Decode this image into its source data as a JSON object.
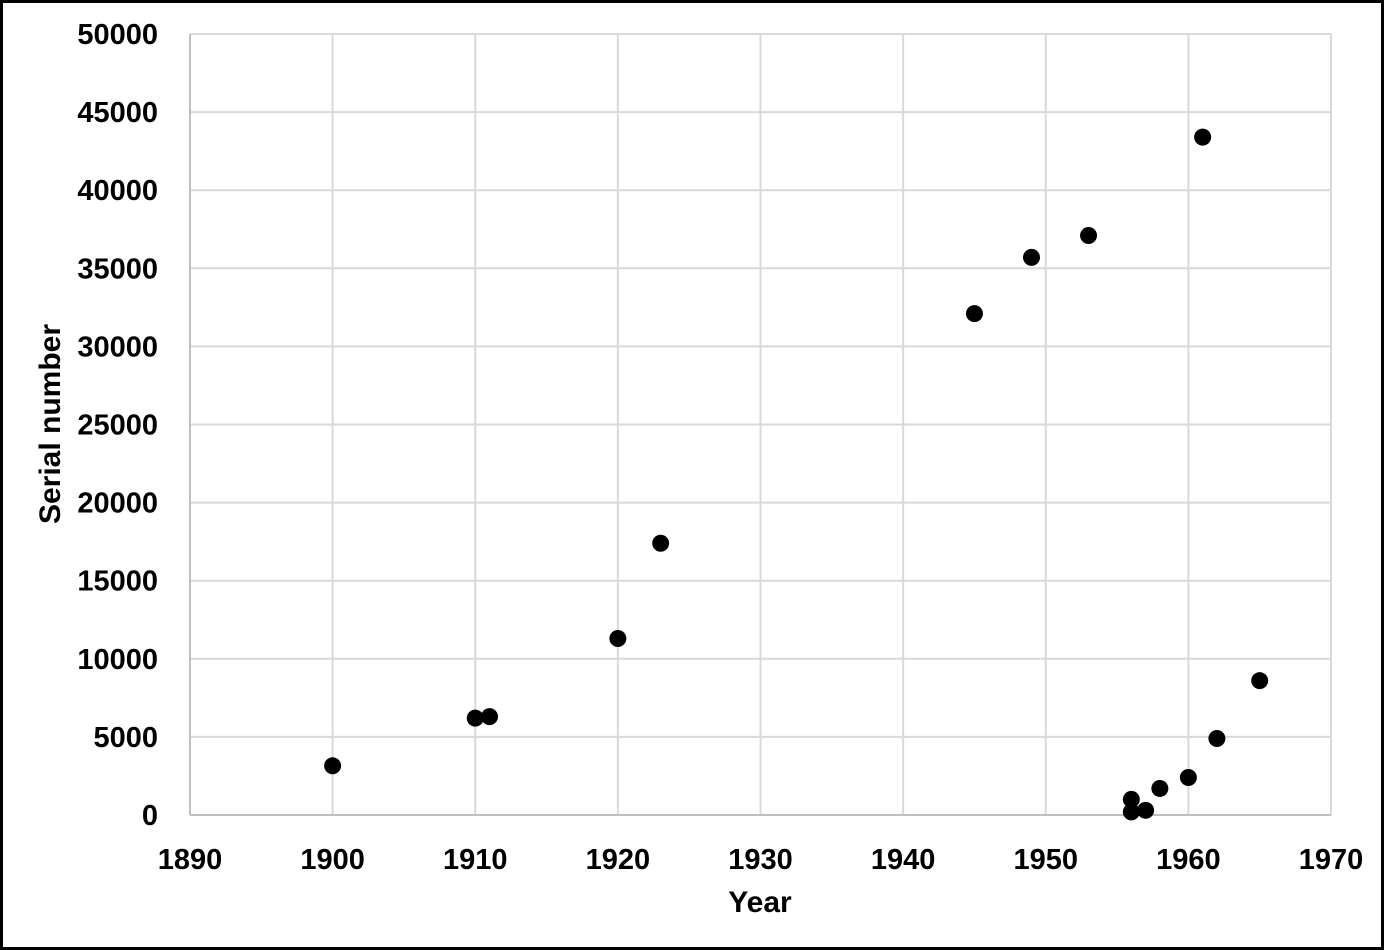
{
  "chart_data": {
    "type": "scatter",
    "title": "",
    "xlabel": "Year",
    "ylabel": "Serial number",
    "xlim": [
      1890,
      1970
    ],
    "ylim": [
      0,
      50000
    ],
    "x_ticks": [
      1890,
      1900,
      1910,
      1920,
      1930,
      1940,
      1950,
      1960,
      1970
    ],
    "y_ticks": [
      0,
      5000,
      10000,
      15000,
      20000,
      25000,
      30000,
      35000,
      40000,
      45000,
      50000
    ],
    "grid": true,
    "legend": "none",
    "marker": {
      "shape": "circle",
      "color": "#000000",
      "radius_px": 8.5
    },
    "points": [
      {
        "x": 1900,
        "y": 3150
      },
      {
        "x": 1910,
        "y": 6200
      },
      {
        "x": 1911,
        "y": 6300
      },
      {
        "x": 1920,
        "y": 11300
      },
      {
        "x": 1923,
        "y": 17400
      },
      {
        "x": 1945,
        "y": 32100
      },
      {
        "x": 1949,
        "y": 35700
      },
      {
        "x": 1953,
        "y": 37100
      },
      {
        "x": 1956,
        "y": 200
      },
      {
        "x": 1956,
        "y": 1000
      },
      {
        "x": 1957,
        "y": 300
      },
      {
        "x": 1958,
        "y": 1700
      },
      {
        "x": 1960,
        "y": 2400
      },
      {
        "x": 1961,
        "y": 43400
      },
      {
        "x": 1962,
        "y": 4900
      },
      {
        "x": 1965,
        "y": 8600
      }
    ],
    "colors": {
      "background": "#ffffff",
      "border": "#000000",
      "gridline": "#d9d9d9",
      "axis_line": "#bfbfbf",
      "tick_text": "#000000",
      "marker": "#000000"
    }
  }
}
